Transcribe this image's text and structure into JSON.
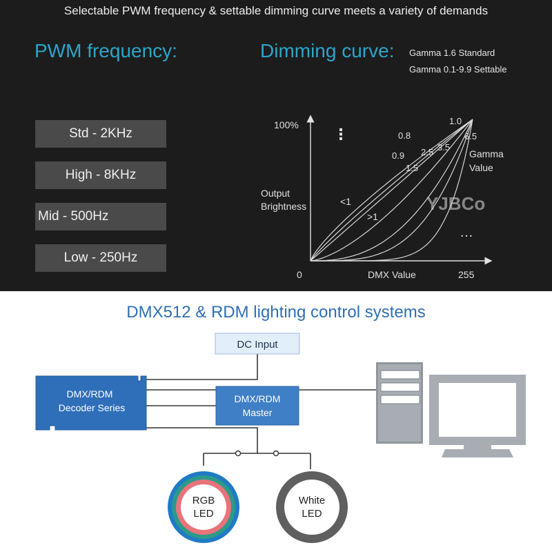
{
  "top": {
    "headline": "Selectable PWM frequency & settable dimming curve meets a variety of demands",
    "pwm_title": "PWM frequency:",
    "dimming_title": "Dimming curve:",
    "gamma_notes": [
      "Gamma 1.6 Standard",
      "Gamma 0.1-9.9 Settable"
    ],
    "frequencies": [
      "Std - 2KHz",
      "High - 8KHz",
      "Mid - 500Hz",
      "Low - 250Hz"
    ]
  },
  "curve": {
    "y_max_label": "100%",
    "y_label_lines": [
      "Output",
      "Brightness"
    ],
    "x_label": "DMX Value",
    "x_min_label": "0",
    "x_max_label": "255",
    "legend_lines": [
      "Gamma",
      "Value"
    ],
    "region_below": "<1",
    "region_above": ">1",
    "curve_labels": [
      "0.8",
      "0.9",
      "1.0",
      "1.5",
      "2.5",
      "3.5",
      "6.5"
    ],
    "vertical_ellipsis": "⋮",
    "horizontal_ellipsis": "…",
    "watermark": "YJBCo"
  },
  "system": {
    "title": "DMX512 & RDM lighting control systems",
    "dc_input": "DC Input",
    "decoder_lines": [
      "DMX/RDM",
      "Decoder Series"
    ],
    "master_lines": [
      "DMX/RDM",
      "Master"
    ],
    "rgb_led_lines": [
      "RGB",
      "LED"
    ],
    "white_led_lines": [
      "White",
      "LED"
    ]
  },
  "colors": {
    "accent": "#2ba6cb",
    "dark_bg": "#1c1c1c",
    "button_bg": "#4a4a4a",
    "system_blue": "#2f6fb9",
    "title_blue": "#2e6fb5"
  },
  "chart_data": {
    "type": "line",
    "xlabel": "DMX Value",
    "ylabel": "Output Brightness",
    "xlim": [
      0,
      255
    ],
    "x_tick_labels": [
      "0",
      "255"
    ],
    "y_tick_labels": [
      "100%"
    ],
    "legend_title": "Gamma Value",
    "series": [
      {
        "name": "0.8",
        "gamma": 0.8
      },
      {
        "name": "0.9",
        "gamma": 0.9
      },
      {
        "name": "1.0",
        "gamma": 1.0
      },
      {
        "name": "1.5",
        "gamma": 1.5
      },
      {
        "name": "2.5",
        "gamma": 2.5
      },
      {
        "name": "3.5",
        "gamma": 3.5
      },
      {
        "name": "6.5",
        "gamma": 6.5
      }
    ],
    "annotations": [
      "<1",
      ">1"
    ]
  }
}
